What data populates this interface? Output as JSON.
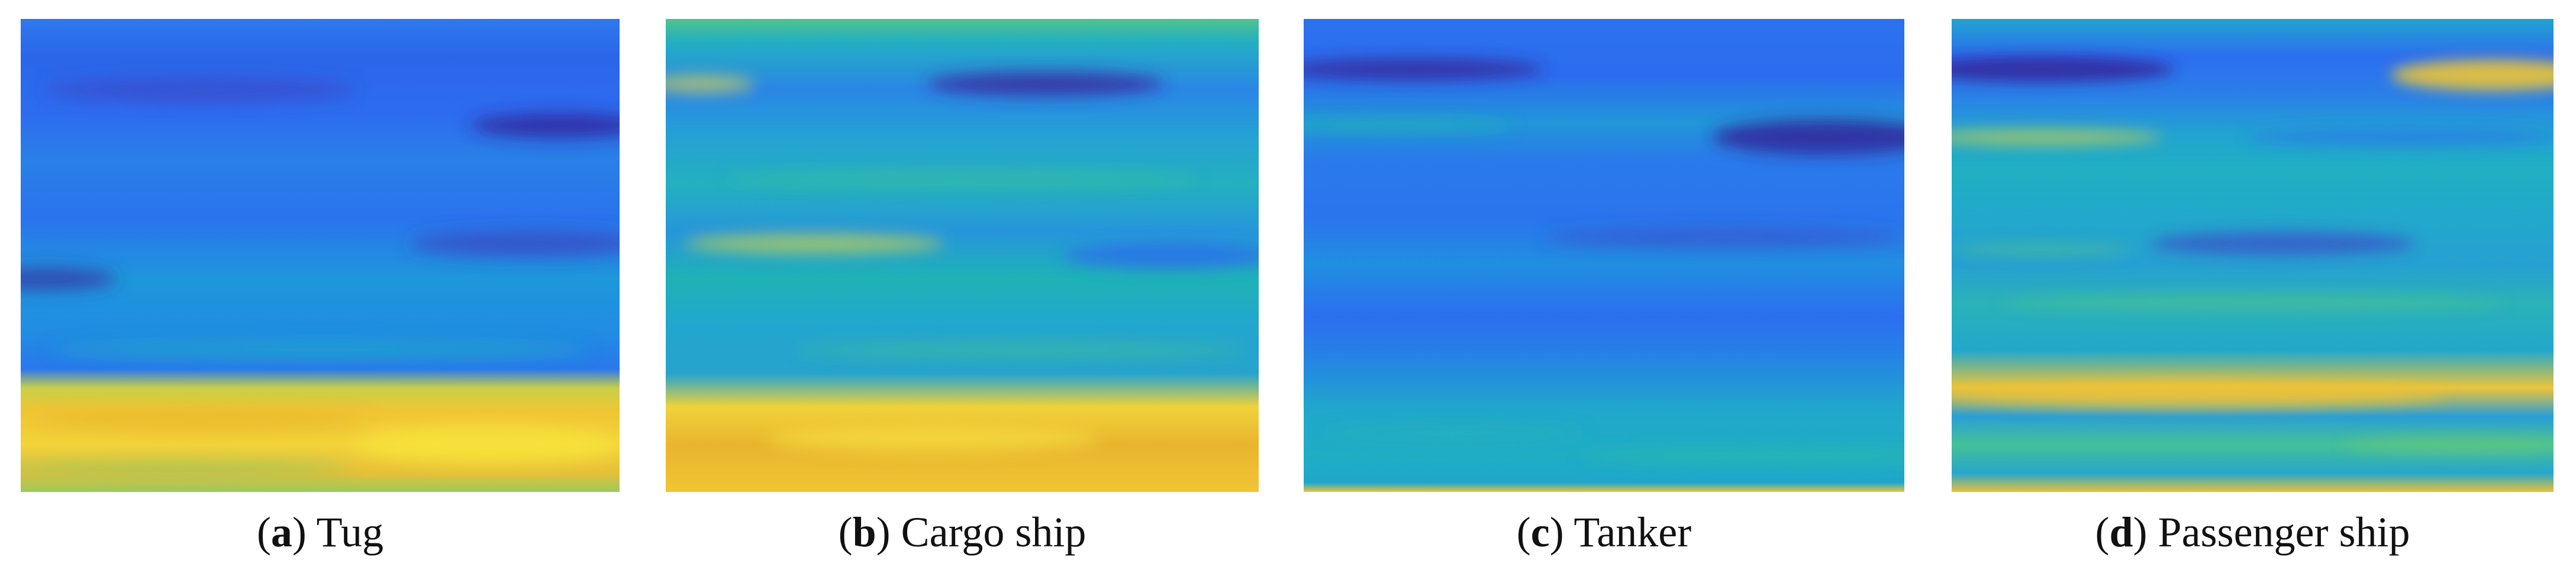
{
  "figures": [
    {
      "letter": "a",
      "label": "Tug"
    },
    {
      "letter": "b",
      "label": "Cargo ship"
    },
    {
      "letter": "c",
      "label": "Tanker"
    },
    {
      "letter": "d",
      "label": "Passenger ship"
    }
  ],
  "colors": {
    "deep_blue": "#3b2fa8",
    "blue": "#2f6ff0",
    "cyan_blue": "#1f9fe0",
    "teal": "#1fb7b0",
    "green": "#55c48a",
    "yellow": "#f2d63a",
    "gold": "#e8b52c"
  }
}
